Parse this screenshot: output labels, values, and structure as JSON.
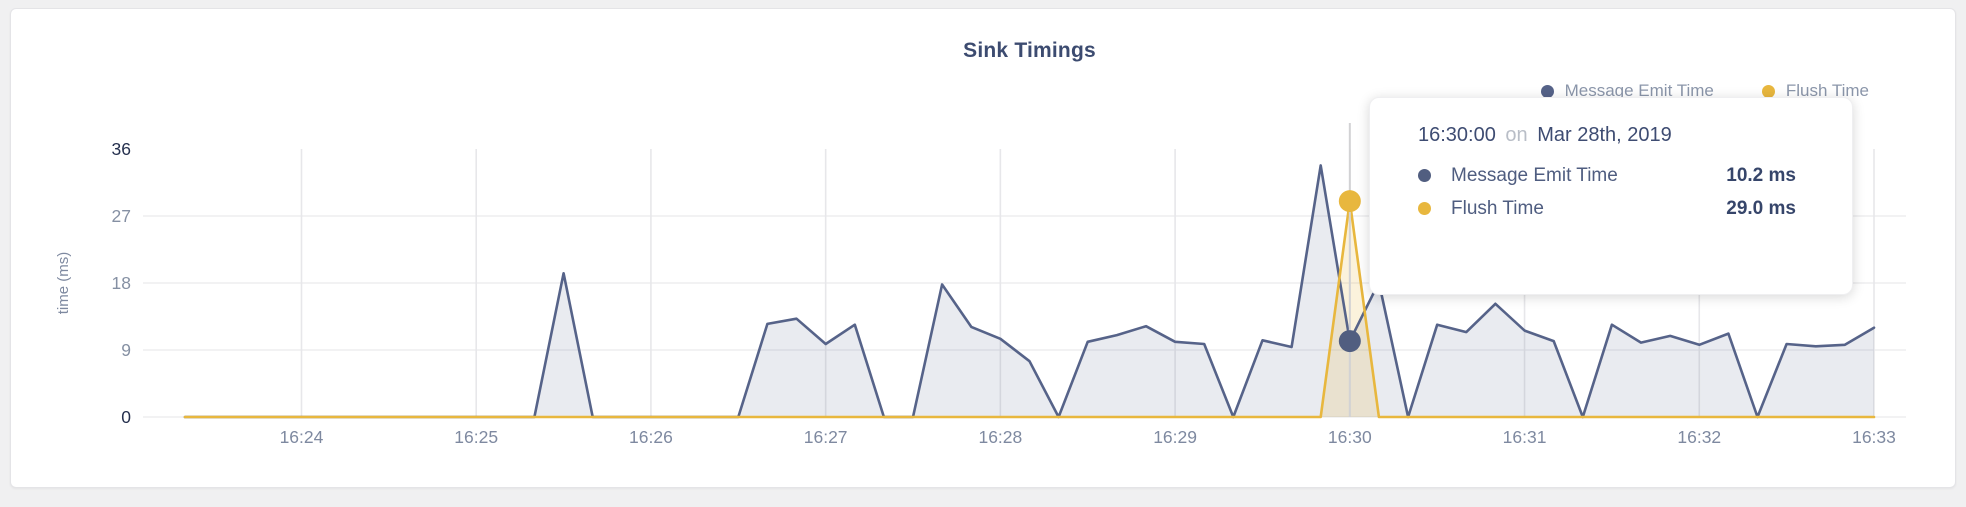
{
  "card": {
    "title": "Sink Timings"
  },
  "legend": {
    "items": [
      {
        "label": "Message Emit Time",
        "color": "#566389"
      },
      {
        "label": "Flush Time",
        "color": "#e8b73e"
      }
    ]
  },
  "tooltip": {
    "time": "16:30:00",
    "joiner": "on",
    "date": "Mar 28th, 2019",
    "rows": [
      {
        "label": "Message Emit Time",
        "value": "10.2 ms",
        "color": "#515e80"
      },
      {
        "label": "Flush Time",
        "value": "29.0 ms",
        "color": "#e8b73e"
      }
    ]
  },
  "hover": {
    "time": "16:30:00",
    "line_color": "#d2d2d4",
    "points": [
      {
        "series": "Message Emit Time",
        "value": 10.2,
        "color": "#515e80"
      },
      {
        "series": "Flush Time",
        "value": 29.0,
        "color": "#e8b73e"
      }
    ]
  },
  "axis": {
    "ylabel": "time (ms)",
    "tick_color": "#8590a3",
    "tick_color_extreme": "#25304e",
    "xlabel_color": "#7e89a0",
    "grid_color_h": "#ededef",
    "grid_color_v": "#e7e7ea"
  },
  "chart_data": {
    "type": "area",
    "title": "Sink Timings",
    "xlabel": "",
    "ylabel": "time (ms)",
    "ylim": [
      0,
      36
    ],
    "yticks": [
      0,
      9,
      18,
      27,
      36
    ],
    "xticks": [
      "16:24",
      "16:25",
      "16:26",
      "16:27",
      "16:28",
      "16:29",
      "16:30",
      "16:31",
      "16:32",
      "16:33"
    ],
    "x_start": "16:23:20",
    "x_end": "16:33:00",
    "interval_seconds": 10,
    "grid": true,
    "legend_position": "top-right",
    "series": [
      {
        "name": "Message Emit Time",
        "color": "#566389",
        "fill": "rgba(86,99,137,0.13)",
        "values": [
          0,
          0,
          0,
          0,
          0,
          0,
          0,
          0,
          0,
          0,
          0,
          0,
          0,
          19.3,
          0,
          0,
          0,
          0,
          0,
          0,
          12.5,
          13.2,
          9.8,
          12.4,
          0,
          0,
          17.8,
          12.1,
          10.5,
          7.5,
          0,
          10.1,
          11,
          12.2,
          10.1,
          9.8,
          0,
          10.3,
          9.4,
          33.8,
          10.2,
          18.1,
          0,
          12.4,
          11.4,
          15.2,
          11.6,
          10.2,
          0,
          12.4,
          10,
          10.9,
          9.7,
          11.2,
          0,
          9.8,
          9.5,
          9.7,
          12
        ]
      },
      {
        "name": "Flush Time",
        "color": "#e8b73e",
        "fill": "rgba(232,183,62,0.18)",
        "values": [
          0,
          0,
          0,
          0,
          0,
          0,
          0,
          0,
          0,
          0,
          0,
          0,
          0,
          0,
          0,
          0,
          0,
          0,
          0,
          0,
          0,
          0,
          0,
          0,
          0,
          0,
          0,
          0,
          0,
          0,
          0,
          0,
          0,
          0,
          0,
          0,
          0,
          0,
          0,
          0,
          29,
          0,
          0,
          0,
          0,
          0,
          0,
          0,
          0,
          0,
          0,
          0,
          0,
          0,
          0,
          0,
          0,
          0,
          0
        ]
      }
    ]
  }
}
